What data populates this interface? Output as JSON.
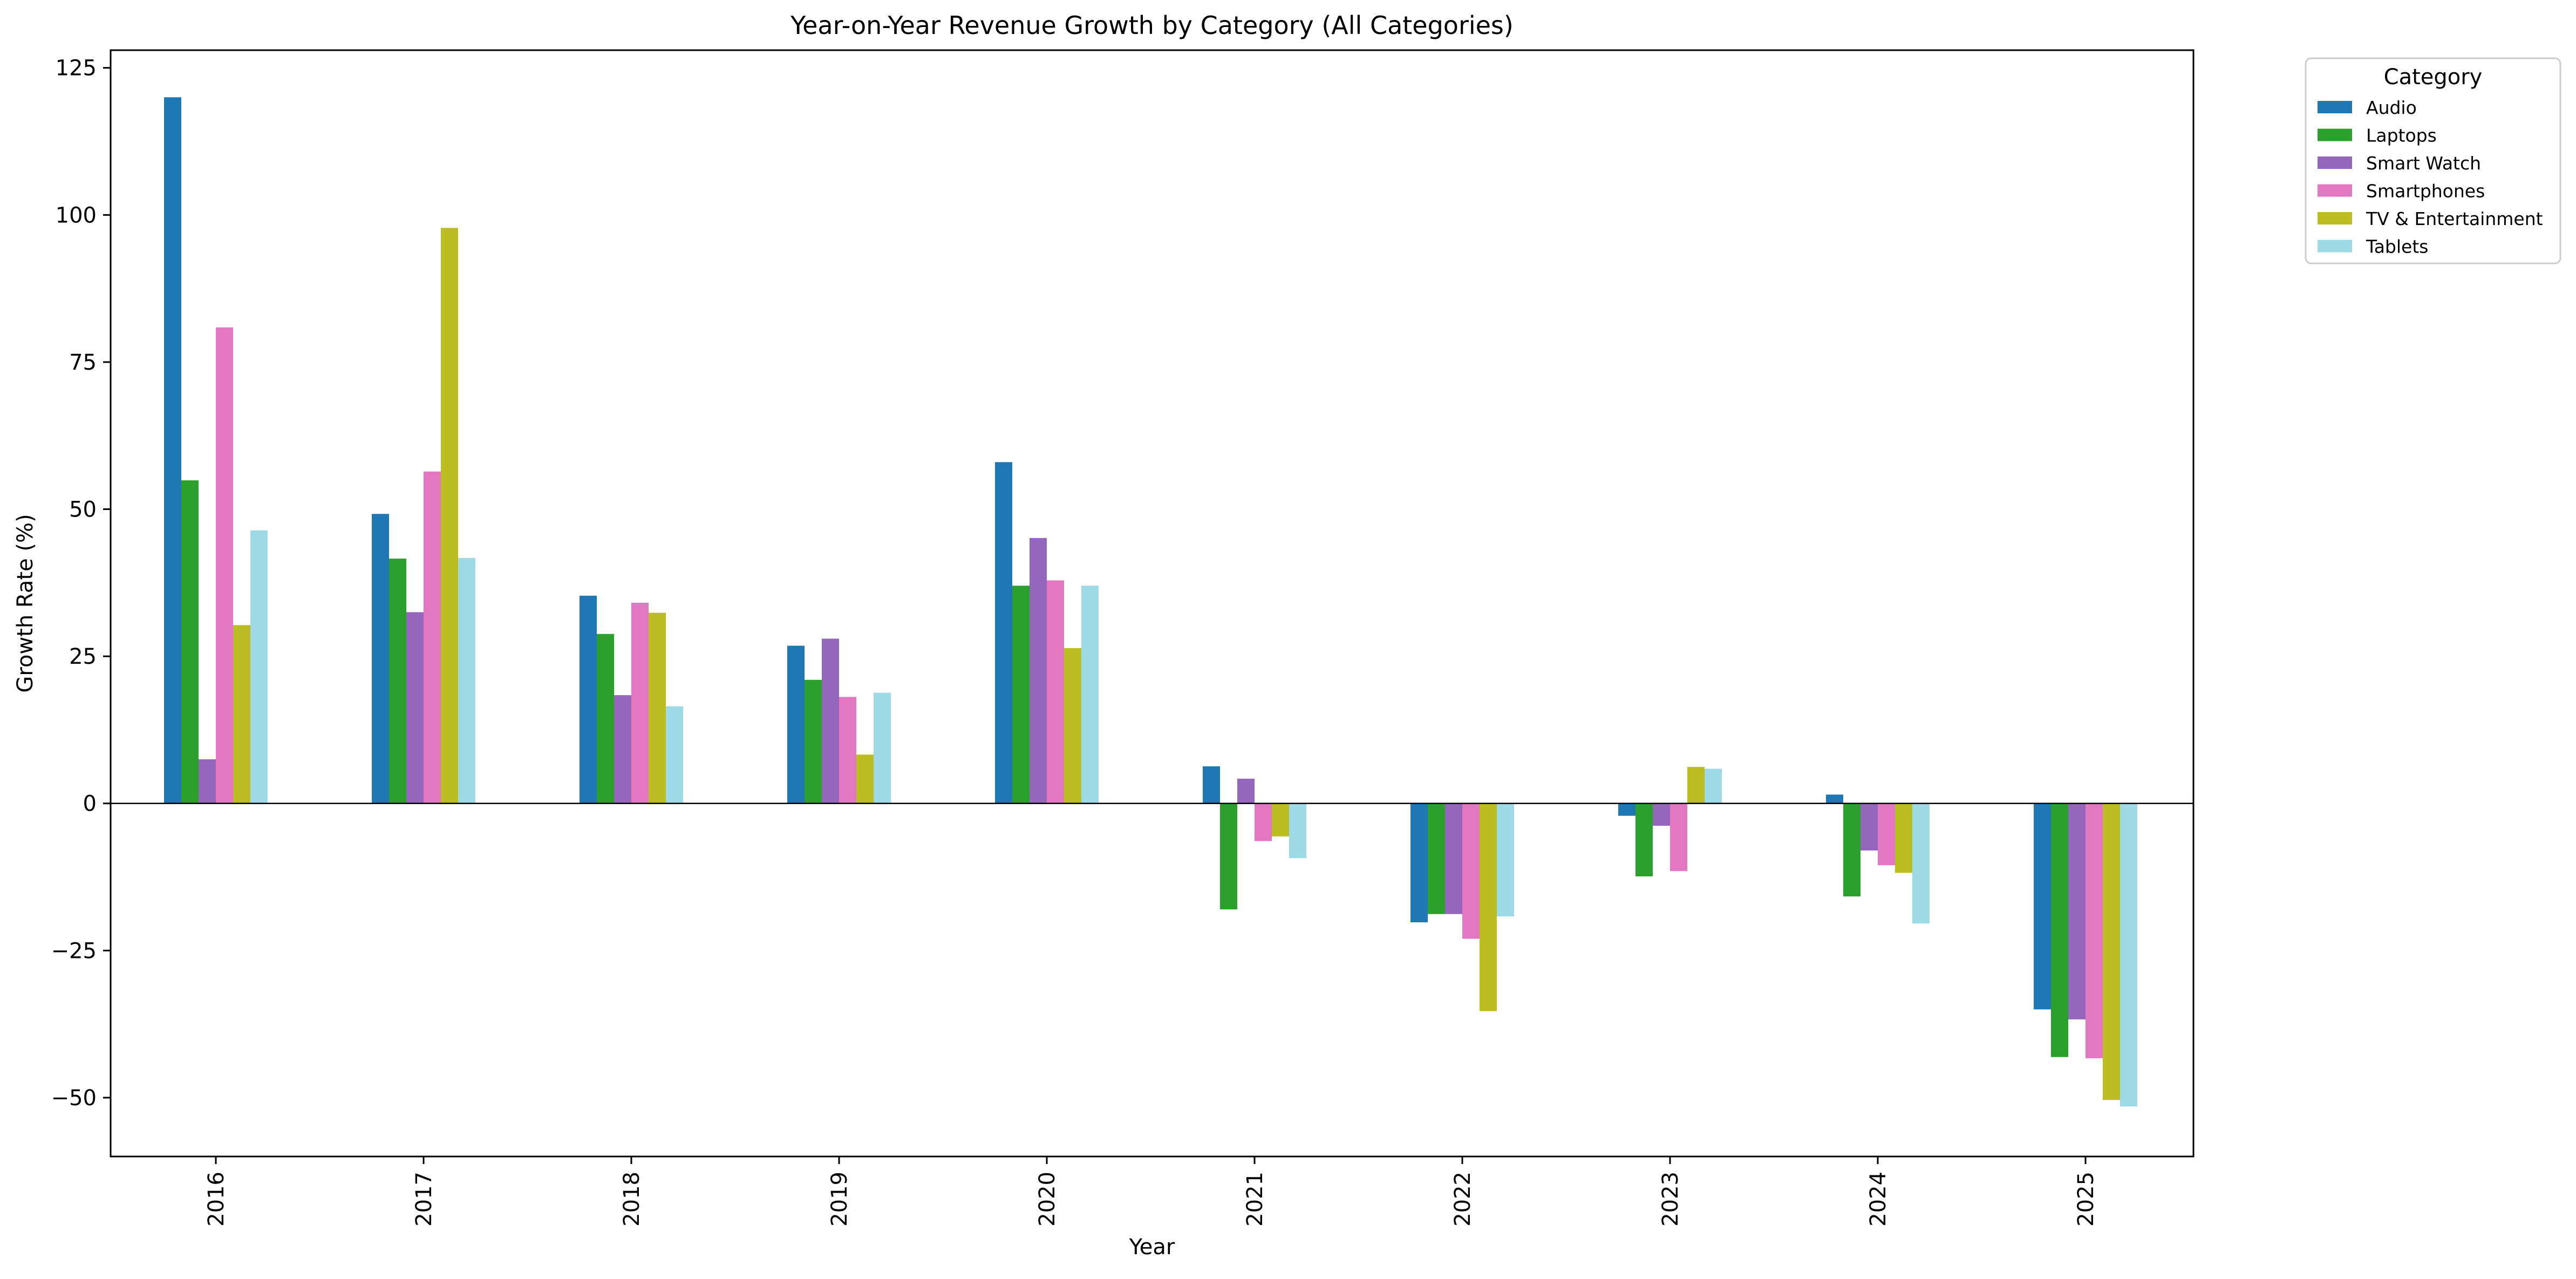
{
  "chart_data": {
    "type": "bar",
    "title": "Year-on-Year Revenue Growth by Category (All Categories)",
    "xlabel": "Year",
    "ylabel": "Growth Rate (%)",
    "ylim": [
      -60,
      128
    ],
    "yticks": [
      -50,
      -25,
      0,
      25,
      50,
      75,
      100,
      125
    ],
    "grid": false,
    "legend_title": "Category",
    "legend_position": "outside-top-right",
    "categories": [
      "2016",
      "2017",
      "2018",
      "2019",
      "2020",
      "2021",
      "2022",
      "2023",
      "2024",
      "2025"
    ],
    "series": [
      {
        "name": "Audio",
        "color": "#1f77b4",
        "values": [
          120.0,
          49.2,
          35.3,
          26.8,
          58.0,
          6.3,
          -20.2,
          -2.1,
          1.5,
          -35.0
        ]
      },
      {
        "name": "Laptops",
        "color": "#2ca02c",
        "values": [
          54.9,
          41.6,
          28.8,
          21.0,
          37.0,
          -18.0,
          -18.8,
          -12.4,
          -15.8,
          -43.1
        ]
      },
      {
        "name": "Smart Watch",
        "color": "#9467bd",
        "values": [
          7.5,
          32.5,
          18.4,
          28.0,
          45.1,
          4.2,
          -18.8,
          -3.8,
          -8.0,
          -36.7
        ]
      },
      {
        "name": "Smartphones",
        "color": "#e377c2",
        "values": [
          80.9,
          56.4,
          34.1,
          18.1,
          37.9,
          -6.4,
          -23.0,
          -11.5,
          -10.5,
          -43.3
        ]
      },
      {
        "name": "TV & Entertainment",
        "color": "#bcbd22",
        "values": [
          30.3,
          97.8,
          32.4,
          8.3,
          26.4,
          -5.6,
          -35.3,
          6.2,
          -11.8,
          -50.4
        ]
      },
      {
        "name": "Tablets",
        "color": "#9edae5",
        "values": [
          46.4,
          41.7,
          16.5,
          18.8,
          37.0,
          -9.3,
          -19.2,
          5.9,
          -20.4,
          -51.5
        ]
      }
    ]
  }
}
